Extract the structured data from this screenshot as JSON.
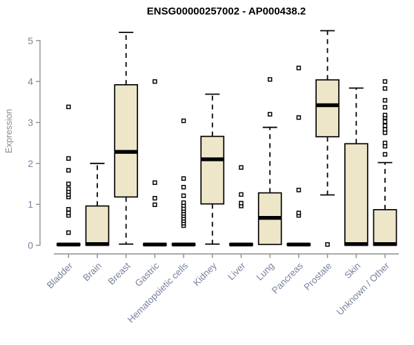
{
  "title": "ENSG00000257002 - AP000438.2",
  "ylabel": "Expression",
  "colors": {
    "box_fill": "#EDE6C9",
    "box_stroke": "#000000",
    "axis": "#8C8C8C",
    "tick_label": "#76839B",
    "category_label": "#76839B",
    "title": "#000000"
  },
  "chart_data": {
    "type": "boxplot",
    "title": "ENSG00000257002 - AP000438.2",
    "xlabel": "",
    "ylabel": "Expression",
    "ylim": [
      0,
      5.3
    ],
    "yticks": [
      0,
      1,
      2,
      3,
      4,
      5
    ],
    "grid": false,
    "legend": "none",
    "categories": [
      "Bladder",
      "Brain",
      "Breast",
      "Gastric",
      "Hematopoietic cells",
      "Kidney",
      "Liver",
      "Lung",
      "Pancreas",
      "Prostate",
      "Skin",
      "Unknown / Other"
    ],
    "boxes": [
      {
        "name": "Bladder",
        "low": 0,
        "q1": 0,
        "median": 0.02,
        "q3": 0.04,
        "high": 0.04,
        "outliers": [
          0.31,
          0.73,
          0.79,
          0.88,
          1.18,
          1.24,
          1.31,
          1.38,
          1.5,
          1.83,
          2.12,
          3.38
        ]
      },
      {
        "name": "Brain",
        "low": 0,
        "q1": 0,
        "median": 0.03,
        "q3": 0.96,
        "high": 2.0,
        "outliers": []
      },
      {
        "name": "Breast",
        "low": 0.03,
        "q1": 1.18,
        "median": 2.28,
        "q3": 3.92,
        "high": 5.2,
        "outliers": []
      },
      {
        "name": "Gastric",
        "low": 0,
        "q1": 0,
        "median": 0.02,
        "q3": 0.04,
        "high": 0.04,
        "outliers": [
          0.99,
          1.15,
          1.53,
          4.0
        ]
      },
      {
        "name": "Hematopoietic cells",
        "low": 0,
        "q1": 0,
        "median": 0.02,
        "q3": 0.04,
        "high": 0.04,
        "outliers": [
          0.48,
          0.54,
          0.6,
          0.66,
          0.72,
          0.78,
          0.84,
          0.9,
          0.97,
          1.04,
          1.21,
          1.42,
          1.63,
          3.04
        ]
      },
      {
        "name": "Kidney",
        "low": 0.03,
        "q1": 1.01,
        "median": 2.1,
        "q3": 2.66,
        "high": 3.69,
        "outliers": []
      },
      {
        "name": "Liver",
        "low": 0,
        "q1": 0,
        "median": 0.02,
        "q3": 0.04,
        "high": 0.04,
        "outliers": [
          0.96,
          1.03,
          1.24,
          1.9
        ]
      },
      {
        "name": "Lung",
        "low": 0.02,
        "q1": 0.02,
        "median": 0.67,
        "q3": 1.28,
        "high": 2.88,
        "outliers": [
          3.2,
          4.05
        ]
      },
      {
        "name": "Pancreas",
        "low": 0,
        "q1": 0,
        "median": 0.02,
        "q3": 0.04,
        "high": 0.04,
        "outliers": [
          0.73,
          0.79,
          1.35,
          3.12,
          4.33
        ]
      },
      {
        "name": "Prostate",
        "low": 1.23,
        "q1": 2.65,
        "median": 3.42,
        "q3": 4.04,
        "high": 5.24,
        "outliers": [
          0.02
        ]
      },
      {
        "name": "Skin",
        "low": 0,
        "q1": 0,
        "median": 0.03,
        "q3": 2.48,
        "high": 3.84,
        "outliers": []
      },
      {
        "name": "Unknown / Other",
        "low": 0,
        "q1": 0,
        "median": 0.03,
        "q3": 0.87,
        "high": 2.02,
        "outliers": [
          2.22,
          2.42,
          2.5,
          2.75,
          2.83,
          2.92,
          3.02,
          3.12,
          3.18,
          3.37,
          3.54,
          3.83,
          4.0
        ]
      }
    ]
  }
}
